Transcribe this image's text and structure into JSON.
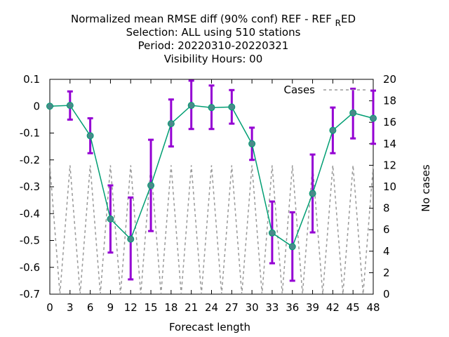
{
  "chart_data": {
    "type": "line",
    "title_lines": [
      "Normalized mean RMSE diff (90% conf) REF - REF",
      "Selection: ALL using   510 stations",
      "Period: 20220310-20220321",
      "Visibility   Hours:  00"
    ],
    "title_subscript": "R",
    "title_suffix": "ED",
    "xlabel": "Forecast length",
    "ylabel": "",
    "y2label": "No cases",
    "x": [
      0,
      3,
      6,
      9,
      12,
      15,
      18,
      21,
      24,
      27,
      30,
      33,
      36,
      39,
      42,
      45,
      48
    ],
    "xlim": [
      0,
      48
    ],
    "ylim": [
      -0.7,
      0.1
    ],
    "y2lim": [
      0,
      20
    ],
    "xticks": [
      "0",
      "3",
      "6",
      "9",
      "12",
      "15",
      "18",
      "21",
      "24",
      "27",
      "30",
      "33",
      "36",
      "39",
      "42",
      "45",
      "48"
    ],
    "yticks": [
      "0.1",
      "0",
      "-0.1",
      "-0.2",
      "-0.3",
      "-0.4",
      "-0.5",
      "-0.6",
      "-0.7"
    ],
    "y2ticks": [
      "20",
      "18",
      "16",
      "14",
      "12",
      "10",
      "8",
      "6",
      "4",
      "2",
      "0"
    ],
    "series": [
      {
        "values": [
          0.0,
          0.003,
          -0.11,
          -0.42,
          -0.495,
          -0.295,
          -0.065,
          0.003,
          -0.005,
          -0.003,
          -0.14,
          -0.472,
          -0.523,
          -0.325,
          -0.09,
          -0.025,
          -0.045
        ],
        "err_low": [
          0.0,
          -0.05,
          -0.175,
          -0.545,
          -0.645,
          -0.465,
          -0.15,
          -0.085,
          -0.085,
          -0.065,
          -0.2,
          -0.585,
          -0.65,
          -0.47,
          -0.175,
          -0.12,
          -0.14
        ],
        "err_high": [
          0.0,
          0.055,
          -0.045,
          -0.295,
          -0.34,
          -0.125,
          0.025,
          0.095,
          0.077,
          0.06,
          -0.08,
          -0.355,
          -0.395,
          -0.18,
          -0.005,
          0.065,
          0.058
        ],
        "line_color": "#009e73",
        "marker_color": "#4a8a8a",
        "errorbar_color": "#9400d3"
      },
      {
        "name": "Cases",
        "axis": "y2",
        "dash_color": "#999999",
        "pattern_high": 12,
        "pattern_low": 0
      }
    ],
    "legend_position": "top-right",
    "grid": false
  }
}
